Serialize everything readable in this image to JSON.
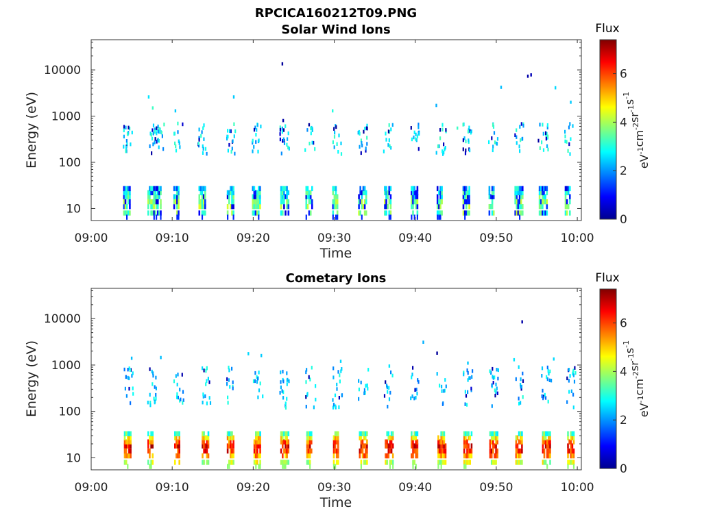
{
  "figure_title": "RPCICA160212T09.PNG",
  "colorbar": {
    "title": "Flux",
    "label_parts": [
      "eV",
      "-1",
      "cm",
      "-2",
      "sr",
      "-1",
      "s",
      "-1"
    ],
    "ticks": [
      "0",
      "2",
      "4",
      "6"
    ],
    "range": [
      0,
      7.4
    ],
    "colormap": "jet"
  },
  "chart_data": [
    {
      "type": "heatmap",
      "title": "Solar Wind Ions",
      "xlabel": "Time",
      "ylabel": "Energy (eV)",
      "x_ticks": [
        "09:00",
        "09:10",
        "09:20",
        "09:30",
        "09:40",
        "09:50",
        "10:00"
      ],
      "y_ticks": [
        "10",
        "100",
        "1000",
        "10000"
      ],
      "xlim_minutes": [
        0,
        60.5
      ],
      "ylim": [
        5.5,
        45000
      ],
      "yscale": "log",
      "cmax": 7.4,
      "sweep_centers_min": [
        4.5,
        7.5,
        8.5,
        10.7,
        13.8,
        17.3,
        20.4,
        23.9,
        27.0,
        30.3,
        33.5,
        36.7,
        40.0,
        43.2,
        46.4,
        49.6,
        52.8,
        55.8,
        59.0
      ],
      "low_band": {
        "energies": [
          8,
          11,
          14,
          18,
          22,
          27
        ],
        "values": [
          3.5,
          3.7,
          3.6,
          3.2,
          2.9,
          2.4
        ]
      },
      "mid_band": {
        "energy_range": [
          150,
          700
        ],
        "typical_value": 2.6
      },
      "sparse_high": [
        {
          "t": 23.6,
          "e": 13500,
          "v": 0.2
        },
        {
          "t": 53.9,
          "e": 7300,
          "v": 0.3
        },
        {
          "t": 54.3,
          "e": 7800,
          "v": 0.4
        },
        {
          "t": 50.6,
          "e": 4200,
          "v": 2.3
        },
        {
          "t": 57.3,
          "e": 4100,
          "v": 2.5
        },
        {
          "t": 7.1,
          "e": 2600,
          "v": 2.6
        },
        {
          "t": 17.6,
          "e": 2600,
          "v": 2.4
        },
        {
          "t": 42.6,
          "e": 1700,
          "v": 2.2
        },
        {
          "t": 59.2,
          "e": 2000,
          "v": 2.4
        },
        {
          "t": 29.8,
          "e": 1300,
          "v": 3.0
        },
        {
          "t": 7.6,
          "e": 1500,
          "v": 3.2
        },
        {
          "t": 10.4,
          "e": 1300,
          "v": 2.4
        },
        {
          "t": 23.7,
          "e": 800,
          "v": 0.3
        },
        {
          "t": 26.9,
          "e": 650,
          "v": 0.2
        },
        {
          "t": 45.2,
          "e": 550,
          "v": 3.2
        }
      ]
    },
    {
      "type": "heatmap",
      "title": "Cometary Ions",
      "xlabel": "Time",
      "ylabel": "Energy (eV)",
      "x_ticks": [
        "09:00",
        "09:10",
        "09:20",
        "09:30",
        "09:40",
        "09:50",
        "10:00"
      ],
      "y_ticks": [
        "10",
        "100",
        "1000",
        "10000"
      ],
      "xlim_minutes": [
        0,
        60.5
      ],
      "ylim": [
        5.5,
        45000
      ],
      "yscale": "log",
      "cmax": 7.4,
      "sweep_centers_min": [
        4.6,
        7.5,
        10.8,
        14.2,
        17.3,
        20.6,
        23.9,
        27.1,
        30.4,
        33.6,
        36.8,
        40.0,
        43.3,
        46.5,
        49.7,
        52.9,
        56.2,
        59.3
      ],
      "low_band": {
        "energies": [
          8,
          11,
          14,
          18,
          22,
          27,
          33
        ],
        "values": [
          4.2,
          5.4,
          6.2,
          6.4,
          5.8,
          4.8,
          3.4
        ]
      },
      "mid_band": {
        "energy_range": [
          120,
          900
        ],
        "typical_value": 2.4
      },
      "sparse_high": [
        {
          "t": 53.2,
          "e": 8500,
          "v": 0.3
        },
        {
          "t": 41.0,
          "e": 3100,
          "v": 2.2
        },
        {
          "t": 42.7,
          "e": 1800,
          "v": 0.2
        },
        {
          "t": 19.4,
          "e": 1750,
          "v": 2.5
        },
        {
          "t": 21.0,
          "e": 1600,
          "v": 2.4
        },
        {
          "t": 5.0,
          "e": 1400,
          "v": 2.3
        },
        {
          "t": 8.6,
          "e": 1450,
          "v": 2.3
        },
        {
          "t": 57.1,
          "e": 1350,
          "v": 2.5
        },
        {
          "t": 52.2,
          "e": 1300,
          "v": 2.6
        },
        {
          "t": 30.8,
          "e": 1200,
          "v": 2.5
        },
        {
          "t": 36.8,
          "e": 950,
          "v": 2.6
        },
        {
          "t": 46.5,
          "e": 1100,
          "v": 2.4
        }
      ]
    }
  ]
}
